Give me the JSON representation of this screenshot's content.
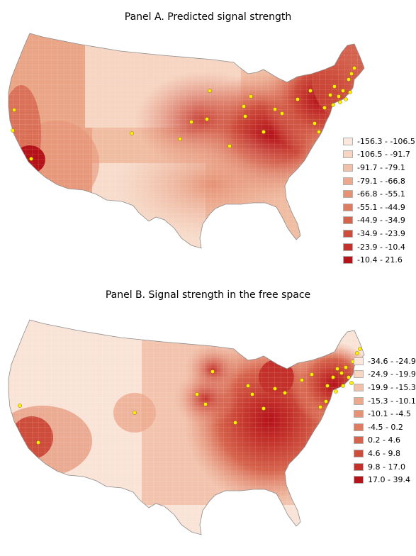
{
  "panels": [
    {
      "title": "Panel A. Predicted signal strength",
      "legend": [
        {
          "label": "-156.3 - -106.5",
          "color": "#fbe7dc"
        },
        {
          "label": "-106.5 - -91.7",
          "color": "#f6d5c3"
        },
        {
          "label": "-91.7 - -79.1",
          "color": "#f1c0a8"
        },
        {
          "label": "-79.1 - -66.8",
          "color": "#eca98d"
        },
        {
          "label": "-66.8 - -55.1",
          "color": "#e69275"
        },
        {
          "label": "-55.1 - -44.9",
          "color": "#de7b61"
        },
        {
          "label": "-44.9 - -34.9",
          "color": "#d6644d"
        },
        {
          "label": "-34.9 - -23.9",
          "color": "#cd4c3b"
        },
        {
          "label": "-23.9 - -10.4",
          "color": "#c3312a"
        },
        {
          "label": "-10.4 - 21.6",
          "color": "#b5121a"
        }
      ]
    },
    {
      "title": "Panel B. Signal strength in the free space",
      "legend": [
        {
          "label": "-34.6 - -24.9",
          "color": "#fbe7dc"
        },
        {
          "label": "-24.9 - -19.9",
          "color": "#f6d5c3"
        },
        {
          "label": "-19.9 - -15.3",
          "color": "#f1c0a8"
        },
        {
          "label": "-15.3 - -10.1",
          "color": "#eca98d"
        },
        {
          "label": "-10.1 - -4.5",
          "color": "#e69275"
        },
        {
          "label": "-4.5 - 0.2",
          "color": "#de7b61"
        },
        {
          "label": "0.2 - 4.6",
          "color": "#d6644d"
        },
        {
          "label": "4.6 - 9.8",
          "color": "#cd4c3b"
        },
        {
          "label": "9.8 - 17.0",
          "color": "#c3312a"
        },
        {
          "label": "17.0 - 39.4",
          "color": "#b5121a"
        }
      ]
    }
  ],
  "marker_color": "#ffee00",
  "border_color": "#8c8c8c"
}
